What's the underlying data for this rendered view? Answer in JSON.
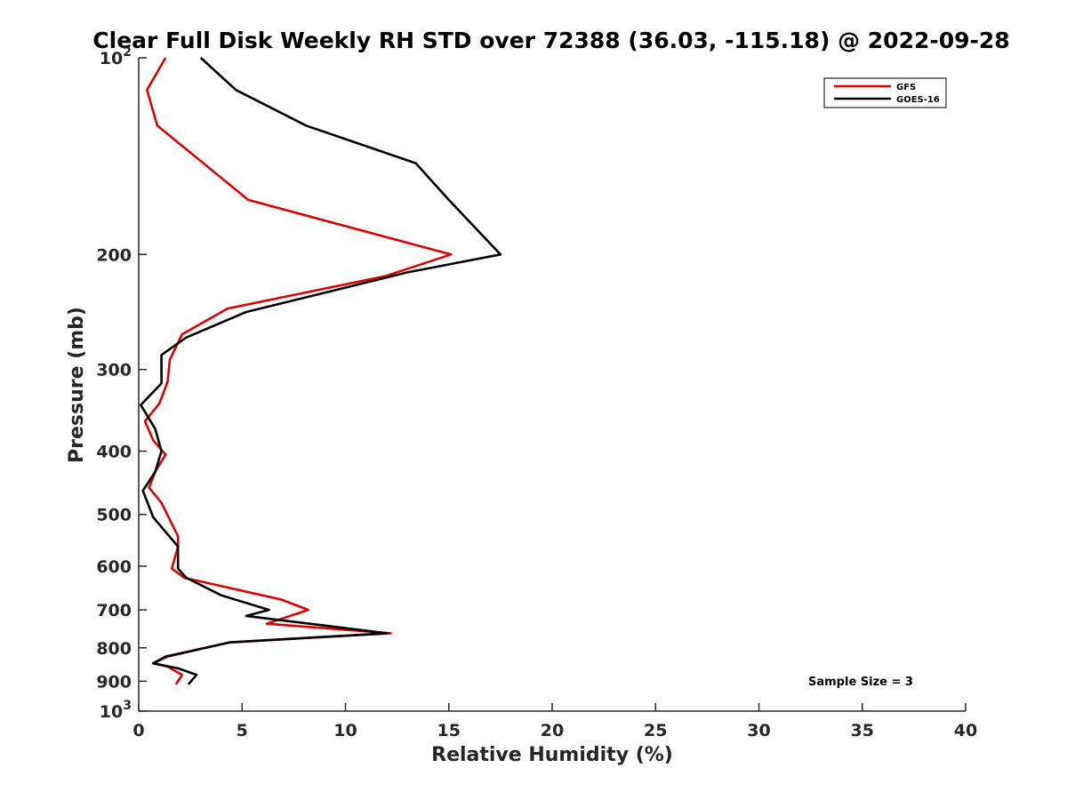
{
  "chart_data": {
    "type": "line",
    "title": "Clear Full Disk Weekly RH STD over 72388 (36.03, -115.18) @ 2022-09-28",
    "xlabel": "Relative Humidity (%)",
    "ylabel": "Pressure (mb)",
    "xlim": [
      0,
      40
    ],
    "ylim": [
      100,
      1000
    ],
    "y_scale": "log",
    "y_reversed": true,
    "x_ticks": [
      0,
      5,
      10,
      15,
      20,
      25,
      30,
      35,
      40
    ],
    "x_tick_labels": [
      "0",
      "5",
      "10",
      "15",
      "20",
      "25",
      "30",
      "35",
      "40"
    ],
    "y_ticks": [
      100,
      200,
      300,
      400,
      500,
      600,
      700,
      800,
      900,
      1000
    ],
    "y_tick_labels": [
      {
        "base": "10",
        "exp": "2"
      },
      {
        "base": "200",
        "exp": ""
      },
      {
        "base": "300",
        "exp": ""
      },
      {
        "base": "400",
        "exp": ""
      },
      {
        "base": "500",
        "exp": ""
      },
      {
        "base": "600",
        "exp": ""
      },
      {
        "base": "700",
        "exp": ""
      },
      {
        "base": "800",
        "exp": ""
      },
      {
        "base": "900",
        "exp": ""
      },
      {
        "base": "10",
        "exp": "3"
      }
    ],
    "legend_position": "top-right",
    "grid": false,
    "annotation": "Sample Size = 3",
    "series": [
      {
        "name": "GFS",
        "color": "#e00000",
        "x": [
          1.3,
          0.4,
          0.9,
          5.3,
          15.1,
          11.9,
          4.3,
          2.1,
          1.5,
          1.4,
          1.0,
          0.3,
          0.7,
          1.3,
          0.8,
          0.5,
          1.1,
          1.9,
          1.9,
          1.6,
          2.2,
          6.9,
          8.2,
          6.2,
          12.2,
          4.4,
          1.4,
          0.7,
          1.4,
          2.1,
          1.8
        ],
        "y": [
          100,
          112,
          127,
          165,
          200,
          216,
          242,
          265,
          290,
          313,
          338,
          360,
          385,
          405,
          430,
          455,
          480,
          540,
          560,
          605,
          625,
          675,
          700,
          735,
          760,
          785,
          825,
          845,
          855,
          880,
          910
        ]
      },
      {
        "name": "GOES-16",
        "color": "#000000",
        "x": [
          3.0,
          4.7,
          8.1,
          13.4,
          15.0,
          17.5,
          13.0,
          5.2,
          2.3,
          1.1,
          1.1,
          1.1,
          0.1,
          0.8,
          1.1,
          0.8,
          0.2,
          0.7,
          1.9,
          1.9,
          2.3,
          4.0,
          6.3,
          5.2,
          12.0,
          4.4,
          1.3,
          0.7,
          1.9,
          2.8,
          2.4
        ],
        "y": [
          100,
          112,
          127,
          145,
          165,
          200,
          213,
          245,
          268,
          285,
          295,
          315,
          340,
          370,
          400,
          430,
          460,
          505,
          560,
          605,
          625,
          665,
          700,
          715,
          760,
          785,
          825,
          845,
          860,
          880,
          910
        ]
      }
    ]
  }
}
